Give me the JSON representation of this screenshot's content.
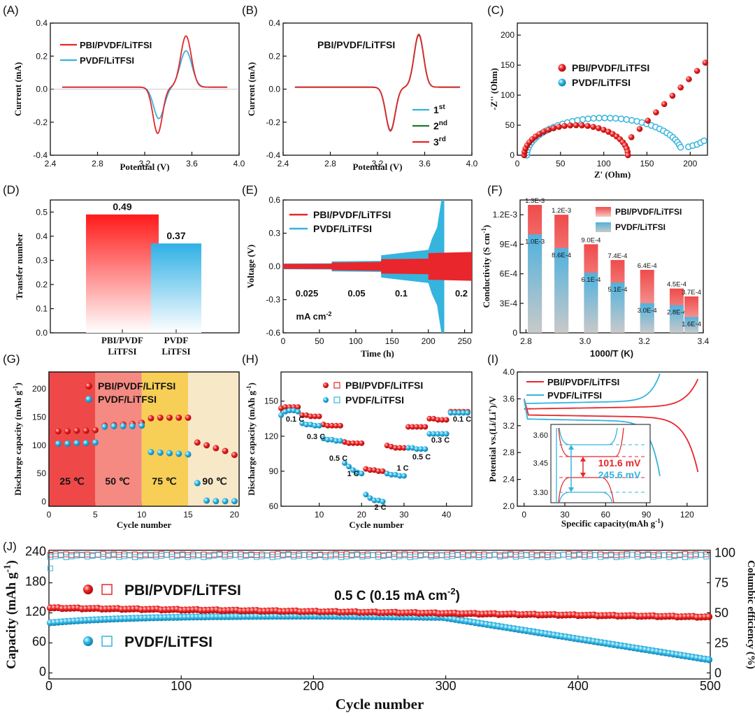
{
  "colors": {
    "red": "#e8262b",
    "blue": "#35b4de",
    "green": "#1f7a2a",
    "black": "#111111"
  },
  "panels": {
    "A": {
      "letter": "(A)",
      "xlabel": "Potential (V)",
      "ylabel": "Current (mA)",
      "xlim": [
        2.4,
        4.0
      ],
      "ylim": [
        -0.4,
        0.4
      ],
      "xticks": [
        "2.4",
        "2.8",
        "3.2",
        "3.6",
        "4.0"
      ],
      "yticks": [
        "-0.4",
        "-0.2",
        "0.0",
        "0.2",
        "0.4"
      ],
      "legend": [
        "PBI/PVDF/LiTFSI",
        "PVDF/LiTFSI"
      ]
    },
    "B": {
      "letter": "(B)",
      "xlabel": "Potential (V)",
      "ylabel": "Current (mA)",
      "title": "PBI/PVDF/LiTFSI",
      "xlim": [
        2.4,
        4.0
      ],
      "ylim": [
        -0.4,
        0.4
      ],
      "xticks": [
        "2.4",
        "2.8",
        "3.2",
        "3.6",
        "4.0"
      ],
      "yticks": [
        "-0.4",
        "-0.2",
        "0.0",
        "0.2",
        "0.4"
      ],
      "legend": [
        {
          "num": "1",
          "sup": "st"
        },
        {
          "num": "2",
          "sup": "nd"
        },
        {
          "num": "3",
          "sup": "rd"
        }
      ]
    },
    "C": {
      "letter": "(C)",
      "xlabel": "Z' (Ohm)",
      "ylabel": "-Z'' (Ohm)",
      "xlim": [
        0,
        220
      ],
      "ylim": [
        0,
        220
      ],
      "xticks": [
        "0",
        "50",
        "100",
        "150",
        "200"
      ],
      "yticks": [
        "0",
        "50",
        "100",
        "150",
        "200"
      ],
      "legend": [
        "PBI/PVDF/LiTFSI",
        "PVDF/LiTFSI"
      ]
    },
    "D": {
      "letter": "(D)",
      "ylabel": "Transfer number",
      "ylim": [
        0,
        0.55
      ],
      "yticks": [
        "0.0",
        "0.1",
        "0.2",
        "0.3",
        "0.4",
        "0.5"
      ],
      "bars": [
        {
          "l1": "PBI/PVDF",
          "l2": "LiTFSI",
          "value": 0.49,
          "label": "0.49"
        },
        {
          "l1": "PVDF",
          "l2": "LiTFSI",
          "value": 0.37,
          "label": "0.37"
        }
      ]
    },
    "E": {
      "letter": "(E)",
      "xlabel": "Time (h)",
      "ylabel": "Voltage (V)",
      "xlim": [
        0,
        260
      ],
      "ylim": [
        -0.6,
        0.6
      ],
      "xticks": [
        "0",
        "50",
        "100",
        "150",
        "200",
        "250"
      ],
      "yticks": [
        "-0.6",
        "-0.3",
        "0.0",
        "0.3",
        "0.6"
      ],
      "legend": [
        "PBI/PVDF/LiTFSI",
        "PVDF/LiTFSI"
      ],
      "densities": [
        "0.025",
        "0.05",
        "0.1",
        "0.2"
      ],
      "unit": "mA cm",
      "unit_sup": "-2"
    },
    "F": {
      "letter": "(F)",
      "xlabel": "1000/T (K)",
      "ylabel": "Conductivity (S cm",
      "ylabel_sup": "-1",
      "xlim": [
        2.78,
        3.4
      ],
      "ylim": [
        0,
        0.00135
      ],
      "xticks": [
        "2.8",
        "3.0",
        "3.2",
        "3.4"
      ],
      "yticks": [
        "0",
        "3E-4",
        "6E-4",
        "9E-4",
        "1.2E-3"
      ],
      "legend": [
        "PBI/PVDF/LiTFSI",
        "PVDF/LiTFSI"
      ],
      "bars": [
        {
          "x": 2.83,
          "pbi": 0.0013,
          "pvdf": 0.001,
          "pbi_label": "1.3E-3",
          "pvdf_label": "1.0E-3"
        },
        {
          "x": 2.92,
          "pbi": 0.0012,
          "pvdf": 0.00086,
          "pbi_label": "1.2E-3",
          "pvdf_label": "8.6E-4"
        },
        {
          "x": 3.02,
          "pbi": 0.0009,
          "pvdf": 0.00061,
          "pbi_label": "9.0E-4",
          "pvdf_label": "6.1E-4"
        },
        {
          "x": 3.11,
          "pbi": 0.00074,
          "pvdf": 0.00051,
          "pbi_label": "7.4E-4",
          "pvdf_label": "5.1E-4"
        },
        {
          "x": 3.21,
          "pbi": 0.00064,
          "pvdf": 0.0003,
          "pbi_label": "6.4E-4",
          "pvdf_label": "3.0E-4"
        },
        {
          "x": 3.31,
          "pbi": 0.00045,
          "pvdf": 0.00028,
          "pbi_label": "4.5E-4",
          "pvdf_label": "2.8E-4"
        },
        {
          "x": 3.36,
          "pbi": 0.00037,
          "pvdf": 0.00016,
          "pbi_label": "3.7E-4",
          "pvdf_label": "1.6E-4"
        }
      ]
    },
    "G": {
      "letter": "(G)",
      "xlabel": "Cycle number",
      "ylabel": "Discharge capacity (mAh g",
      "ylabel_sup": "-1",
      "xlim": [
        0,
        20.5
      ],
      "ylim": [
        -8,
        230
      ],
      "xticks": [
        "0",
        "5",
        "10",
        "15",
        "20"
      ],
      "yticks": [
        "0",
        "50",
        "100",
        "150",
        "200"
      ],
      "legend": [
        "PBI/PVDF/LiTFSI",
        "PVDF/LiTFSI"
      ],
      "temps": [
        "25 ℃",
        "50 ℃",
        "75 ℃",
        "90 ℃"
      ],
      "pbi": [
        125,
        125,
        126,
        126,
        127,
        135,
        136,
        137,
        138,
        140,
        148,
        149,
        149,
        149,
        149,
        105,
        100,
        95,
        90,
        83
      ],
      "pvdf": [
        103,
        103,
        104,
        104,
        105,
        133,
        134,
        134,
        134,
        135,
        88,
        87,
        86,
        85,
        84,
        33,
        2,
        1,
        1,
        1
      ]
    },
    "H": {
      "letter": "(H)",
      "xlabel": "Cycle number",
      "ylabel": "Discharge capacity (mAh g",
      "ylabel_sup": "-1",
      "xlim": [
        1,
        46
      ],
      "ylim": [
        60,
        175
      ],
      "xticks": [
        "10",
        "20",
        "30",
        "40"
      ],
      "yticks": [
        "60",
        "90",
        "120",
        "150"
      ],
      "legend": [
        "PBI/PVDF/LiTFSI",
        "PVDF/LiTFSI"
      ],
      "rates": [
        "0.1 C",
        "0.3 C",
        "0.5 C",
        "1 C",
        "2 C",
        "1 C",
        "0.5 C",
        "0.3 C",
        "0.1 C"
      ],
      "pbi": [
        144,
        145,
        145,
        145,
        145,
        138,
        138,
        137,
        137,
        137,
        130,
        129,
        129,
        129,
        129,
        115,
        114,
        114,
        114,
        114,
        92,
        91,
        91,
        90,
        90,
        112,
        111,
        110,
        110,
        110,
        128,
        128,
        128,
        128,
        128,
        135,
        135,
        134,
        134,
        134,
        141,
        141,
        141,
        141,
        141
      ],
      "pvdf": [
        138,
        141,
        142,
        142,
        141,
        131,
        130,
        130,
        129,
        129,
        118,
        117,
        117,
        116,
        116,
        97,
        94,
        91,
        89,
        88,
        70,
        67,
        65,
        65,
        64,
        88,
        87,
        87,
        86,
        86,
        110,
        110,
        109,
        109,
        109,
        122,
        122,
        122,
        122,
        122,
        140,
        140,
        140,
        140,
        140
      ]
    },
    "I": {
      "letter": "(I)",
      "xlabel": "Specific capacity(mAh g",
      "xlabel_sup": "-1",
      "xlabel_end": ")",
      "ylabel": "Potential vs.(Li/Li",
      "ylabel_sup": "+",
      "ylabel_end": ")/V",
      "xlim": [
        -5,
        135
      ],
      "ylim": [
        2.0,
        4.0
      ],
      "xticks": [
        "0",
        "30",
        "60",
        "90",
        "120"
      ],
      "yticks": [
        "2.0",
        "2.4",
        "2.8",
        "3.2",
        "3.6",
        "4.0"
      ],
      "legend": [
        "PBI/PVDF/LiTFSI",
        "PVDF/LiTFSI"
      ],
      "inset": {
        "yticks": [
          "3.60",
          "3.45",
          "3.30"
        ],
        "red_label": "101.6 mV",
        "blue_label": "245.6 mV"
      }
    },
    "J": {
      "letter": "(J)",
      "xlabel": "Cycle number",
      "ylabel": "Capacity (mAh g",
      "ylabel_sup": "-1",
      "ylabel_end": ")",
      "ylabel_right": "Columbic efficiency (%)",
      "xlim": [
        0,
        500
      ],
      "ylim": [
        -12,
        245
      ],
      "ylim_right": [
        -5,
        102
      ],
      "xticks": [
        "0",
        "100",
        "200",
        "300",
        "400",
        "500"
      ],
      "yticks": [
        "0",
        "60",
        "120",
        "180",
        "240"
      ],
      "yticks_right": [
        "0",
        "25",
        "50",
        "75",
        "100"
      ],
      "annotation": "0.5 C (0.15 mA cm",
      "annotation_sup": "-2",
      "annotation_end": ")",
      "legend": [
        "PBI/PVDF/LiTFSI",
        "PVDF/LiTFSI"
      ]
    }
  }
}
